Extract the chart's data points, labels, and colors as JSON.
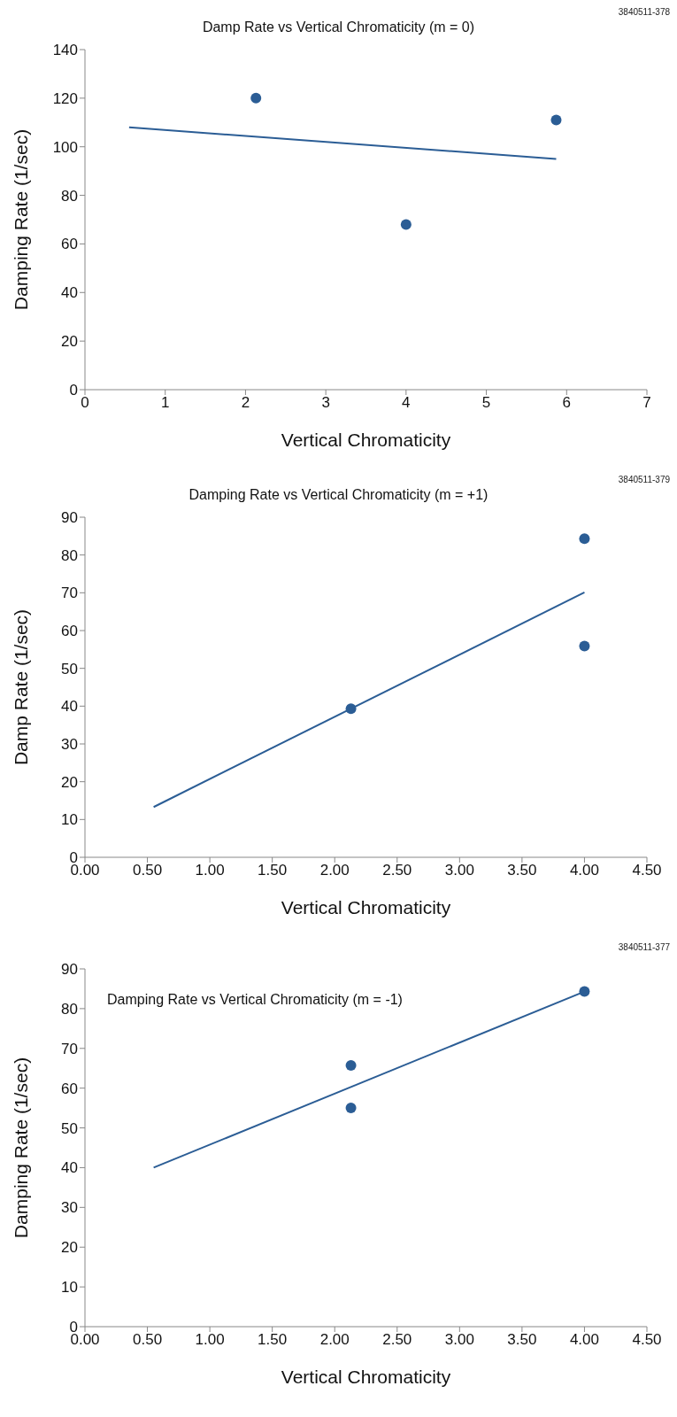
{
  "chart_data": [
    {
      "type": "scatter",
      "title": "Damp Rate vs Vertical Chromaticity (m = 0)",
      "xlabel": "Vertical Chromaticity",
      "ylabel": "Damping Rate (1/sec)",
      "annotations": [
        "3840511-378"
      ],
      "xlim": [
        0,
        7
      ],
      "xticks": [
        0,
        1,
        2,
        3,
        4,
        5,
        6,
        7
      ],
      "ylim": [
        0,
        140
      ],
      "yticks": [
        0,
        20,
        40,
        60,
        80,
        100,
        120,
        140
      ],
      "marker": "circle",
      "series": [
        {
          "color": "#2b5d95",
          "x": [
            2.13,
            4.0,
            5.87
          ],
          "values": [
            120,
            68,
            111
          ]
        },
        {
          "type": "line",
          "marker": "none",
          "color": "#2b5d95",
          "x": [
            0.55,
            5.87
          ],
          "values": [
            108,
            95
          ]
        }
      ]
    },
    {
      "type": "scatter",
      "title": "Damping Rate vs Vertical Chromaticity (m = +1)",
      "xlabel": "Vertical Chromaticity",
      "ylabel": "Damp Rate (1/sec)",
      "annotations": [
        "3840511-379"
      ],
      "xlim": [
        0,
        4.5
      ],
      "xticks": [
        {
          "value": 0,
          "label": "0.00"
        },
        {
          "value": 0.5,
          "label": "0.50"
        },
        {
          "value": 1,
          "label": "1.00"
        },
        {
          "value": 1.5,
          "label": "1.50"
        },
        {
          "value": 2,
          "label": "2.00"
        },
        {
          "value": 2.5,
          "label": "2.50"
        },
        {
          "value": 3,
          "label": "3.00"
        },
        {
          "value": 3.5,
          "label": "3.50"
        },
        {
          "value": 4,
          "label": "4.00"
        },
        {
          "value": 4.5,
          "label": "4.50"
        }
      ],
      "ylim": [
        0,
        90
      ],
      "yticks": [
        0,
        10,
        20,
        30,
        40,
        50,
        60,
        70,
        80,
        90
      ],
      "marker": "circle",
      "series": [
        {
          "color": "#2b5d95",
          "x": [
            2.13,
            4.0,
            4.0
          ],
          "values": [
            39.3,
            84.3,
            55.9
          ]
        },
        {
          "type": "line",
          "marker": "none",
          "color": "#2b5d95",
          "x": [
            0.55,
            4.0
          ],
          "values": [
            13.3,
            70.1
          ]
        }
      ]
    },
    {
      "type": "scatter",
      "title": "Damping Rate vs Vertical Chromaticity (m = -1)",
      "xlabel": "Vertical Chromaticity",
      "ylabel": "Damping Rate (1/sec)",
      "annotations": [
        "3840511-377"
      ],
      "xlim": [
        0,
        4.5
      ],
      "xticks": [
        {
          "value": 0,
          "label": "0.00"
        },
        {
          "value": 0.5,
          "label": "0.50"
        },
        {
          "value": 1,
          "label": "1.00"
        },
        {
          "value": 1.5,
          "label": "1.50"
        },
        {
          "value": 2,
          "label": "2.00"
        },
        {
          "value": 2.5,
          "label": "2.50"
        },
        {
          "value": 3,
          "label": "3.00"
        },
        {
          "value": 3.5,
          "label": "3.50"
        },
        {
          "value": 4,
          "label": "4.00"
        },
        {
          "value": 4.5,
          "label": "4.50"
        }
      ],
      "ylim": [
        0,
        90
      ],
      "yticks": [
        0,
        10,
        20,
        30,
        40,
        50,
        60,
        70,
        80,
        90
      ],
      "marker": "circle",
      "series": [
        {
          "color": "#2b5d95",
          "x": [
            2.13,
            2.13,
            4.0
          ],
          "values": [
            65.7,
            55,
            84.3
          ]
        },
        {
          "type": "line",
          "marker": "none",
          "color": "#2b5d95",
          "x": [
            0.55,
            4.0
          ],
          "values": [
            40,
            84.3
          ]
        }
      ]
    }
  ]
}
